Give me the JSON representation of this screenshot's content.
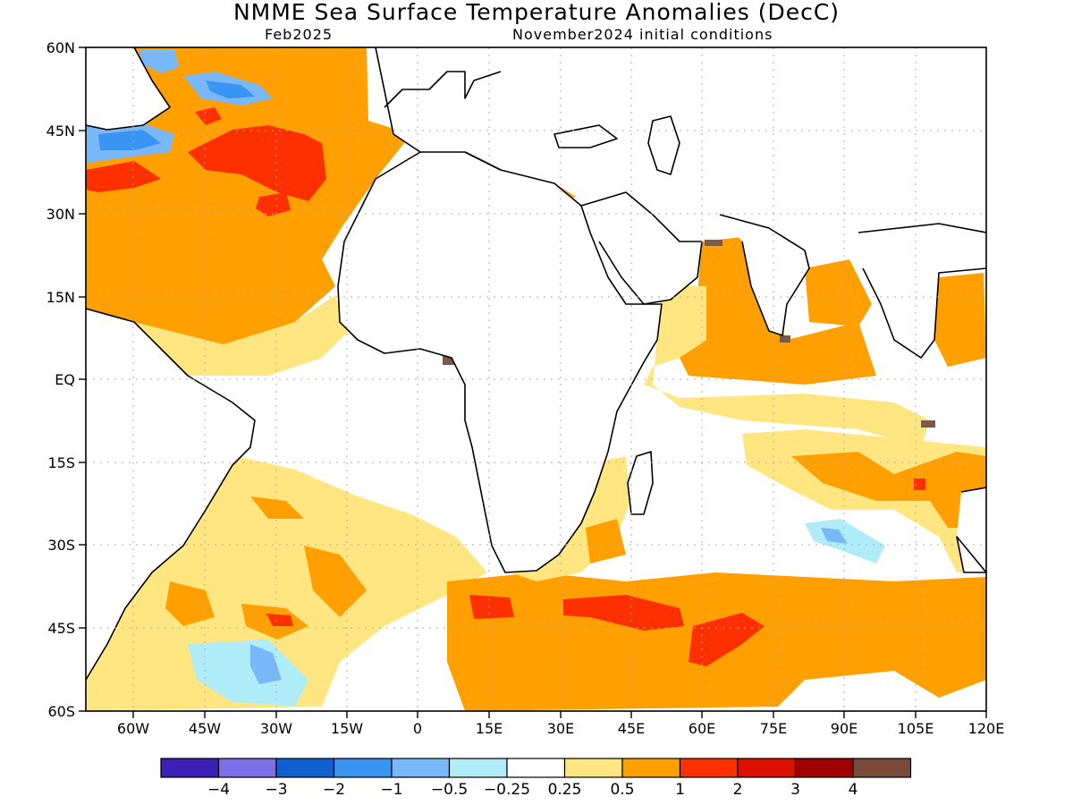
{
  "title": "NMME Sea Surface Temperature Anomalies (DecC)",
  "subtitle_left": "Feb2025",
  "subtitle_right": "November2024 initial conditions",
  "lat_labels": [
    "60N",
    "45N",
    "30N",
    "15N",
    "EQ",
    "15S",
    "30S",
    "45S",
    "60S"
  ],
  "lon_labels": [
    "60W",
    "45W",
    "30W",
    "15W",
    "0",
    "15E",
    "30E",
    "45E",
    "60E",
    "75E",
    "90E",
    "105E",
    "120E"
  ],
  "colorbar": {
    "colors": [
      "#3a1fb8",
      "#7f6de8",
      "#1060d0",
      "#3a94f2",
      "#78b8f8",
      "#b0ecf8",
      "#ffffff",
      "#ffe680",
      "#ffa000",
      "#ff3000",
      "#dd1000",
      "#a00000",
      "#7a4a3a"
    ],
    "labels": [
      "-4",
      "-3",
      "-2",
      "-1",
      "-0.5",
      "-0.25",
      "0.25",
      "0.5",
      "1",
      "2",
      "3",
      "4"
    ]
  },
  "legend_colors": {
    "yellow": "#ffe680",
    "orange": "#ffa000",
    "red": "#ff3000",
    "light_cyan": "#b0ecf8",
    "light_blue": "#78b8f8",
    "blue": "#3a94f2",
    "dark_blue": "#1060d0",
    "brown": "#7a5a48"
  }
}
